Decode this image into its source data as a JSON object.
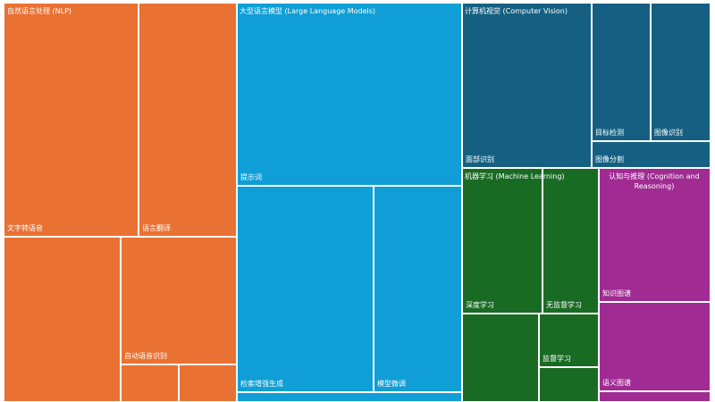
{
  "chart_data": {
    "type": "treemap",
    "colors": {
      "nlp": "#E97132",
      "llm": "#0F9ED5",
      "cv": "#156082",
      "ml": "#196B24",
      "cr": "#A02B93"
    },
    "groups": [
      {
        "id": "nlp",
        "name": "自然语言处理 (NLP)",
        "children": [
          {
            "name": "文字转语音"
          },
          {
            "name": "语言翻译"
          },
          {
            "name": ""
          },
          {
            "name": "自动语音识别"
          },
          {
            "name": ""
          },
          {
            "name": ""
          }
        ]
      },
      {
        "id": "llm",
        "name": "大型语言模型 (Large Language Models)",
        "children": [
          {
            "name": "提示词"
          },
          {
            "name": "检索增强生成"
          },
          {
            "name": "模型微调"
          },
          {
            "name": ""
          }
        ]
      },
      {
        "id": "cv",
        "name": "计算机视觉 (Computer Vision)",
        "children": [
          {
            "name": "面部识别"
          },
          {
            "name": "目标检测"
          },
          {
            "name": "图像识别"
          },
          {
            "name": "图像分割"
          }
        ]
      },
      {
        "id": "ml",
        "name": "机器学习 (Machine Learning)",
        "children": [
          {
            "name": "深度学习"
          },
          {
            "name": "无监督学习"
          },
          {
            "name": ""
          },
          {
            "name": "监督学习"
          },
          {
            "name": ""
          }
        ]
      },
      {
        "id": "cr",
        "name": "认知与推理 (Cognition and Reasoning)",
        "children": [
          {
            "name": "知识图谱"
          },
          {
            "name": "语义图谱"
          },
          {
            "name": ""
          }
        ]
      }
    ]
  }
}
